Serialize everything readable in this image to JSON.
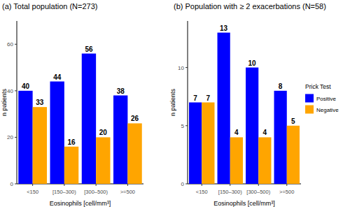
{
  "chart_data": [
    {
      "type": "bar",
      "title": "(a) Total population (N=273)",
      "x_label": "Eosinophils [cell/mm³]",
      "y_label": "n patients",
      "categories": [
        "<150",
        "[150–300)",
        "[300–500)",
        ">=500"
      ],
      "series": [
        {
          "name": "Positive",
          "color": "#0000ff",
          "values": [
            40,
            44,
            56,
            38
          ]
        },
        {
          "name": "Negative",
          "color": "#ffa500",
          "values": [
            33,
            16,
            20,
            26
          ]
        }
      ],
      "ylim": [
        0,
        70
      ],
      "yticks": [
        0,
        20,
        40,
        60
      ],
      "data_labels": true
    },
    {
      "type": "bar",
      "title": "(b) Population with ≥ 2 exacerbations (N=58)",
      "x_label": "Eosinophils [cell/mm³]",
      "y_label": "n patients",
      "categories": [
        "<150",
        "[150–300)",
        "[300–500)",
        ">=500"
      ],
      "series": [
        {
          "name": "Positive",
          "color": "#0000ff",
          "values": [
            7,
            13,
            10,
            8
          ]
        },
        {
          "name": "Negative",
          "color": "#ffa500",
          "values": [
            7,
            4,
            4,
            5
          ]
        }
      ],
      "ylim": [
        0,
        14
      ],
      "yticks": [
        0,
        5,
        10
      ],
      "data_labels": true,
      "legend": "right",
      "legend_title": "Prick Test"
    }
  ]
}
